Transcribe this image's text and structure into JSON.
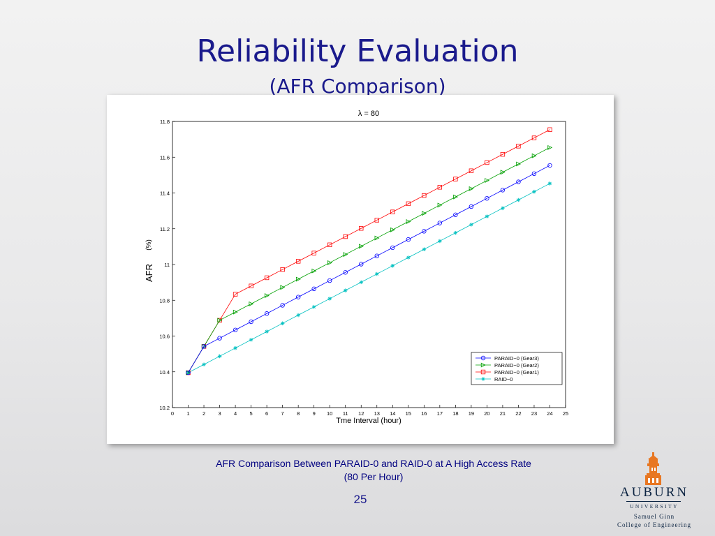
{
  "slide": {
    "title": "Reliability Evaluation",
    "subtitle": "(AFR Comparison)",
    "caption_line1": "AFR Comparison Between PARAID-0 and RAID-0 at A High Access Rate",
    "caption_line2": "(80 Per Hour)",
    "page_number": "25"
  },
  "logo": {
    "name": "AUBURN",
    "university": "UNIVERSITY",
    "college_line1": "Samuel Ginn",
    "college_line2": "College of Engineering"
  },
  "chart_data": {
    "type": "line",
    "title": "λ = 80",
    "xlabel": "Tme Interval (hour)",
    "ylabel": "AFR",
    "ylabel_unit": "(%)",
    "xlim": [
      0,
      25
    ],
    "ylim": [
      10.2,
      11.8
    ],
    "xticks": [
      0,
      1,
      2,
      3,
      4,
      5,
      6,
      7,
      8,
      9,
      10,
      11,
      12,
      13,
      14,
      15,
      16,
      17,
      18,
      19,
      20,
      21,
      22,
      23,
      24,
      25
    ],
    "yticks": [
      10.2,
      10.4,
      10.6,
      10.8,
      11,
      11.2,
      11.4,
      11.6,
      11.8
    ],
    "grid": true,
    "legend_position": "bottom-right",
    "x": [
      1,
      2,
      3,
      4,
      5,
      6,
      7,
      8,
      9,
      10,
      11,
      12,
      13,
      14,
      15,
      16,
      17,
      18,
      19,
      20,
      21,
      22,
      23,
      24
    ],
    "series": [
      {
        "name": "PARAID−0 (Gear3)",
        "color": "#0000ff",
        "marker": "circle",
        "values": [
          10.395,
          10.542,
          10.588,
          10.634,
          10.68,
          10.726,
          10.772,
          10.818,
          10.864,
          10.91,
          10.956,
          11.002,
          11.048,
          11.094,
          11.14,
          11.186,
          11.232,
          11.278,
          11.324,
          11.37,
          11.416,
          11.462,
          11.508,
          11.554
        ]
      },
      {
        "name": "PARAID−0 (Gear2)",
        "color": "#00a000",
        "marker": "triangle-right",
        "values": [
          10.395,
          10.542,
          10.688,
          10.734,
          10.78,
          10.826,
          10.872,
          10.918,
          10.964,
          11.01,
          11.056,
          11.102,
          11.148,
          11.194,
          11.24,
          11.286,
          11.332,
          11.378,
          11.424,
          11.47,
          11.516,
          11.562,
          11.608,
          11.654
        ]
      },
      {
        "name": "PARAID−0 (Gear1)",
        "color": "#ff0000",
        "marker": "square",
        "values": [
          10.395,
          10.542,
          10.688,
          10.834,
          10.88,
          10.926,
          10.972,
          11.018,
          11.064,
          11.11,
          11.156,
          11.202,
          11.248,
          11.294,
          11.34,
          11.386,
          11.432,
          11.478,
          11.524,
          11.57,
          11.616,
          11.662,
          11.708,
          11.754
        ]
      },
      {
        "name": "RAID−0",
        "color": "#00c0c0",
        "marker": "star",
        "values": [
          10.395,
          10.441,
          10.487,
          10.533,
          10.579,
          10.625,
          10.671,
          10.717,
          10.763,
          10.809,
          10.855,
          10.901,
          10.947,
          10.993,
          11.039,
          11.085,
          11.131,
          11.177,
          11.223,
          11.269,
          11.315,
          11.361,
          11.407,
          11.453
        ]
      }
    ]
  }
}
